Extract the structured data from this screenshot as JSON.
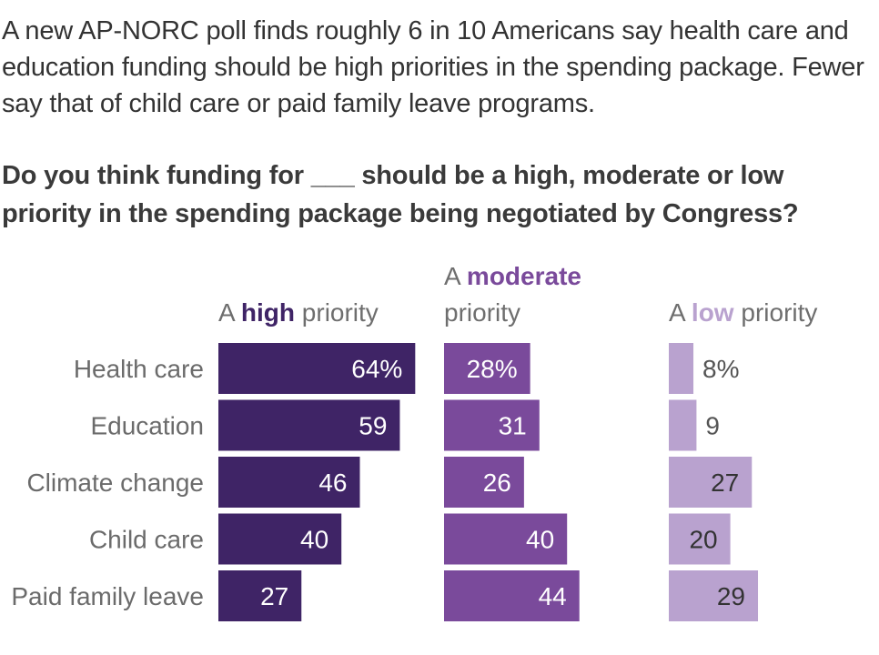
{
  "intro": "A new AP-NORC poll finds roughly 6 in 10 Americans say health care and education funding should be high priorities in the spending package. Fewer say that of child care or paid family leave programs.",
  "question": "Do you think funding for ___ should be a high, moderate or low priority in the spending package being negotiated by Congress?",
  "chart_data": {
    "type": "bar",
    "categories": [
      "Health care",
      "Education",
      "Climate change",
      "Child care",
      "Paid family leave"
    ],
    "series": [
      {
        "name": "A high priority",
        "values": [
          64,
          59,
          46,
          40,
          27
        ],
        "labels": [
          "64%",
          "59",
          "46",
          "40",
          "27"
        ],
        "color": "#3f2466",
        "label_color": "#ffffff"
      },
      {
        "name": "A moderate priority",
        "values": [
          28,
          31,
          26,
          40,
          44
        ],
        "labels": [
          "28%",
          "31",
          "26",
          "40",
          "44"
        ],
        "color": "#7a4a9b",
        "label_color": "#ffffff"
      },
      {
        "name": "A low priority",
        "values": [
          8,
          9,
          27,
          20,
          29
        ],
        "labels": [
          "8%",
          "9",
          "27",
          "20",
          "29"
        ],
        "color": "#b9a2cf",
        "label_color": "#333333"
      }
    ],
    "headers": [
      {
        "lines": [
          [
            "A ",
            "high",
            " priority"
          ]
        ],
        "kw_color": "#3f2466"
      },
      {
        "lines": [
          [
            "A ",
            "moderate",
            ""
          ],
          [
            "priority",
            "",
            ""
          ]
        ],
        "kw_color": "#7a4a9b"
      },
      {
        "lines": [
          [
            "A ",
            "low",
            " priority"
          ]
        ],
        "kw_color": "#b9a2cf"
      }
    ],
    "xlim": [
      0,
      100
    ]
  }
}
